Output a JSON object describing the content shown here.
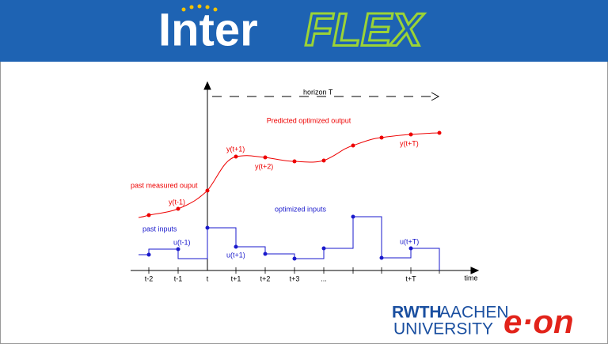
{
  "header": {
    "logo": [
      "Inter",
      "FLEX"
    ]
  },
  "diagram": {
    "horizon": "horizon T",
    "output_title": "Predicted optimized output",
    "past_output": "past measured ouput",
    "output_labels": [
      "y(t-1)",
      "y(t+1)",
      "y(t+2)",
      "y(t+T)"
    ],
    "input_title": "optimized inputs",
    "past_input": "past inputs",
    "input_labels": [
      "u(t-1)",
      "u(t+1)",
      "u(t+T)"
    ],
    "time_labels": [
      "t-2",
      "t-1",
      "t",
      "t+1",
      "t+2",
      "t+3",
      "...",
      "t+T"
    ],
    "axis_label": "time"
  },
  "footer": {
    "university": [
      "RWTH",
      "AACHEN",
      "UNIVERSITY"
    ],
    "company": "e·on"
  }
}
